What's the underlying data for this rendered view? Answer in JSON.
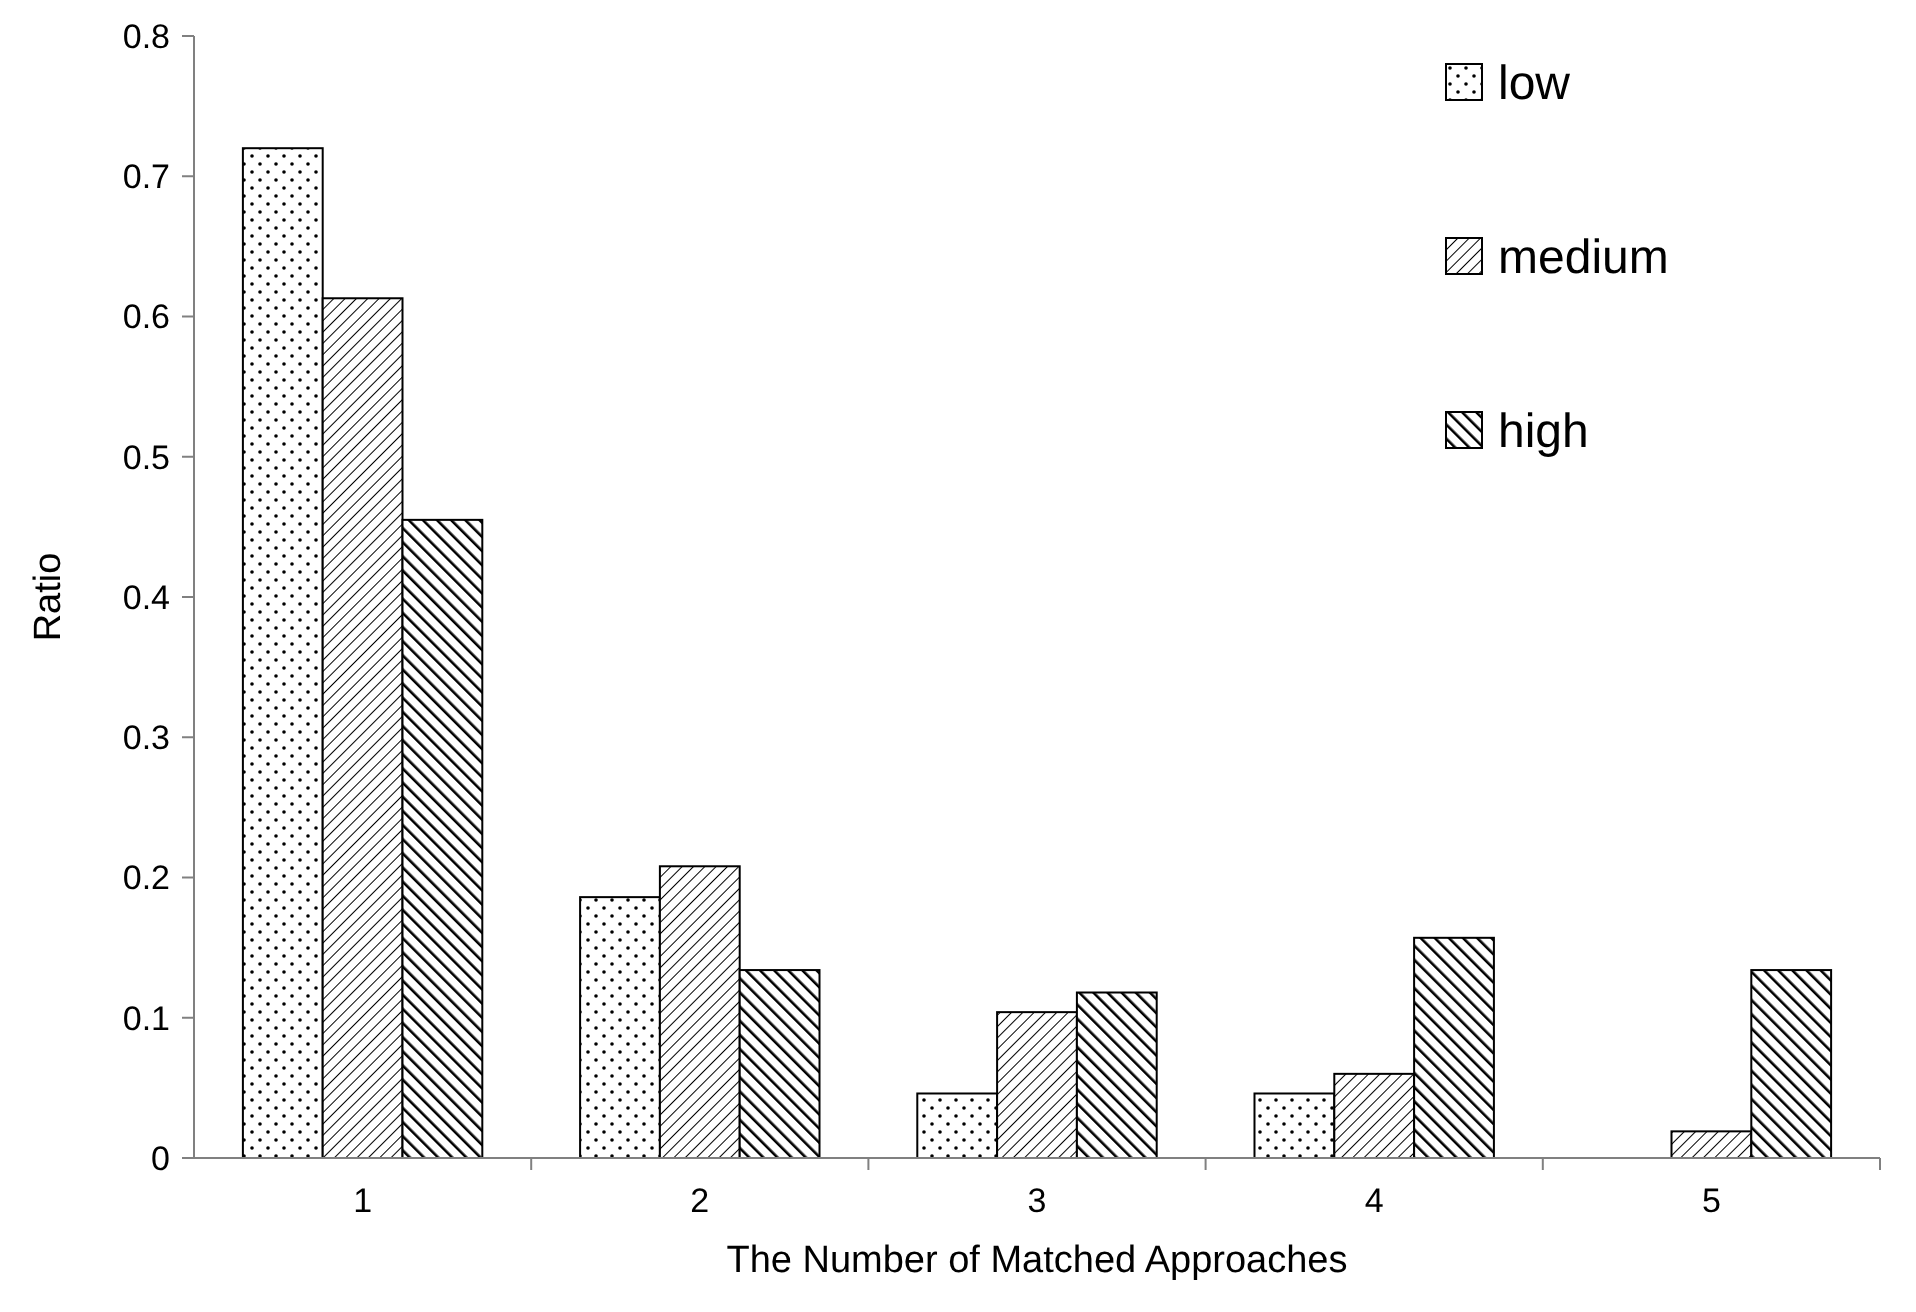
{
  "chart_data": {
    "type": "bar",
    "xlabel": "The Number of Matched Approaches",
    "ylabel": "Ratio",
    "categories": [
      "1",
      "2",
      "3",
      "4",
      "5"
    ],
    "series": [
      {
        "name": "low",
        "color": "#000000",
        "values": [
          0.72,
          0.186,
          0.046,
          0.046,
          0
        ]
      },
      {
        "name": "medium",
        "color": "#000000",
        "values": [
          0.613,
          0.208,
          0.104,
          0.06,
          0.019
        ]
      },
      {
        "name": "high",
        "color": "#000000",
        "values": [
          0.455,
          0.134,
          0.118,
          0.157,
          0.134
        ]
      }
    ],
    "ylim": [
      0,
      0.8
    ],
    "yticks": [
      0,
      0.1,
      0.2,
      0.3,
      0.4,
      0.5,
      0.6,
      0.7,
      0.8
    ],
    "grid": false,
    "legend": "top right"
  }
}
